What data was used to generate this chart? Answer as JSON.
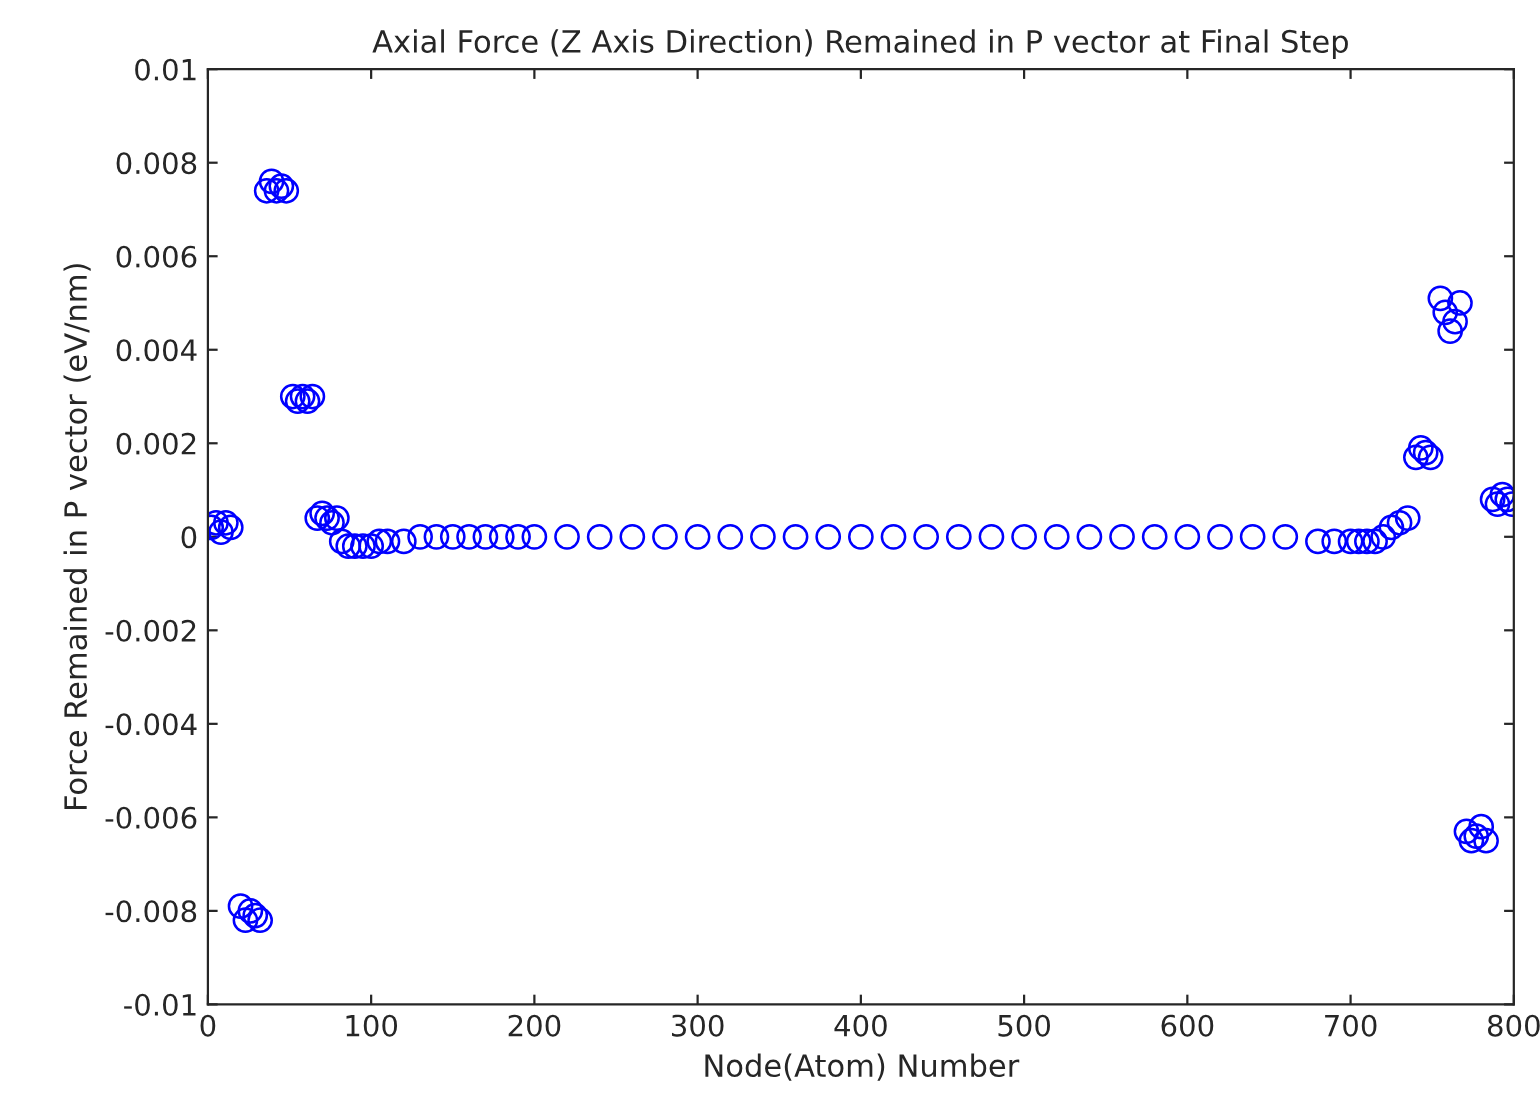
{
  "chart_data": {
    "type": "scatter",
    "title": "Axial Force (Z Axis Direction) Remained in P vector at Final Step",
    "xlabel": "Node(Atom) Number",
    "ylabel": "Force Remained in P vector (eV/nm)",
    "xlim": [
      0,
      800
    ],
    "xticks": [
      0,
      100,
      200,
      300,
      400,
      500,
      600,
      700,
      800
    ],
    "ylim": [
      -0.01,
      0.01
    ],
    "yticks": [
      -0.01,
      -0.008,
      -0.006,
      -0.004,
      -0.002,
      0,
      0.002,
      0.004,
      0.006,
      0.008,
      0.01
    ],
    "marker": "circle",
    "grid": false,
    "series": [
      {
        "color": "#0000ff",
        "x": [
          2,
          5,
          8,
          11,
          14,
          20,
          23,
          26,
          29,
          32,
          36,
          39,
          42,
          45,
          48,
          52,
          55,
          58,
          61,
          64,
          67,
          70,
          73,
          76,
          79,
          82,
          86,
          90,
          95,
          100,
          105,
          110,
          120,
          130,
          140,
          150,
          160,
          170,
          180,
          190,
          200,
          220,
          240,
          260,
          280,
          300,
          320,
          340,
          360,
          380,
          400,
          420,
          440,
          460,
          480,
          500,
          520,
          540,
          560,
          580,
          600,
          620,
          640,
          660,
          680,
          690,
          700,
          705,
          710,
          715,
          720,
          725,
          730,
          735,
          740,
          743,
          746,
          749,
          755,
          758,
          761,
          764,
          767,
          771,
          774,
          777,
          780,
          783,
          787,
          790,
          793,
          796,
          799
        ],
        "values": [
          0.0002,
          0.0003,
          0.0001,
          0.0003,
          0.0002,
          -0.0079,
          -0.0082,
          -0.008,
          -0.0081,
          -0.0082,
          0.0074,
          0.0076,
          0.0074,
          0.0075,
          0.0074,
          0.003,
          0.0029,
          0.003,
          0.0029,
          0.003,
          0.0004,
          0.0005,
          0.0004,
          0.0003,
          0.0004,
          -0.0001,
          -0.0002,
          -0.0002,
          -0.0002,
          -0.0002,
          -0.0001,
          -0.0001,
          -0.0001,
          0,
          0,
          0,
          0,
          0,
          0,
          0,
          0,
          0,
          0,
          0,
          0,
          0,
          0,
          0,
          0,
          0,
          0,
          0,
          0,
          0,
          0,
          0,
          0,
          0,
          0,
          0,
          0,
          0,
          0,
          0,
          -0.0001,
          -0.0001,
          -0.0001,
          -0.0001,
          -0.0001,
          -0.0001,
          0,
          0.0002,
          0.0003,
          0.0004,
          0.0017,
          0.0019,
          0.0018,
          0.0017,
          0.0051,
          0.0048,
          0.0044,
          0.0046,
          0.005,
          -0.0063,
          -0.0065,
          -0.0064,
          -0.0062,
          -0.0065,
          0.0008,
          0.0007,
          0.0009,
          0.0008,
          0.0007
        ]
      }
    ]
  }
}
